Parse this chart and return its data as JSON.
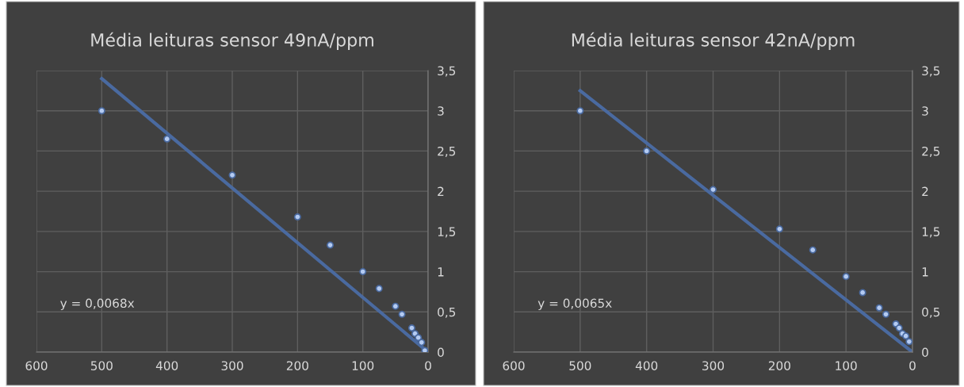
{
  "chart_data": [
    {
      "type": "scatter",
      "title": "Média leituras sensor 49nA/ppm",
      "grid": true,
      "xlim": [
        600,
        0
      ],
      "xticks": [
        600,
        500,
        400,
        300,
        200,
        100,
        0
      ],
      "ylim": [
        0,
        3.5
      ],
      "yticks": [
        0,
        {
          "value": 0.5,
          "label": "0,5"
        },
        1,
        {
          "value": 1.5,
          "label": "1,5"
        },
        2,
        {
          "value": 2.5,
          "label": "2,5"
        },
        3,
        {
          "value": 3.5,
          "label": "3,5"
        }
      ],
      "annotations": [
        "y = 0,0068x"
      ],
      "series": [
        {
          "color": "#b4cbf2",
          "marker": "circle",
          "x": [
            500,
            400,
            300,
            200,
            150,
            100,
            75,
            50,
            40,
            25,
            20,
            15,
            10,
            5
          ],
          "values": [
            3.0,
            2.65,
            2.2,
            1.68,
            1.33,
            1.0,
            0.79,
            0.57,
            0.47,
            0.3,
            0.23,
            0.18,
            0.12,
            0.02
          ]
        },
        {
          "type": "line",
          "color": "#4a6aa0",
          "x": [
            500,
            0
          ],
          "values": [
            3.4,
            0
          ]
        }
      ]
    },
    {
      "type": "scatter",
      "title": "Média leituras sensor 42nA/ppm",
      "grid": true,
      "xlim": [
        600,
        0
      ],
      "xticks": [
        600,
        500,
        400,
        300,
        200,
        100,
        0
      ],
      "ylim": [
        0,
        3.5
      ],
      "yticks": [
        0,
        {
          "value": 0.5,
          "label": "0,5"
        },
        1,
        {
          "value": 1.5,
          "label": "1,5"
        },
        2,
        {
          "value": 2.5,
          "label": "2,5"
        },
        3,
        {
          "value": 3.5,
          "label": "3,5"
        }
      ],
      "annotations": [
        "y = 0,0065x"
      ],
      "series": [
        {
          "color": "#b4cbf2",
          "marker": "circle",
          "x": [
            500,
            400,
            300,
            200,
            150,
            100,
            75,
            50,
            40,
            25,
            20,
            15,
            10,
            5
          ],
          "values": [
            3.0,
            2.5,
            2.02,
            1.53,
            1.27,
            0.94,
            0.74,
            0.55,
            0.47,
            0.35,
            0.3,
            0.23,
            0.2,
            0.13
          ]
        },
        {
          "type": "line",
          "color": "#4a6aa0",
          "x": [
            500,
            0
          ],
          "values": [
            3.25,
            0
          ]
        }
      ]
    }
  ]
}
